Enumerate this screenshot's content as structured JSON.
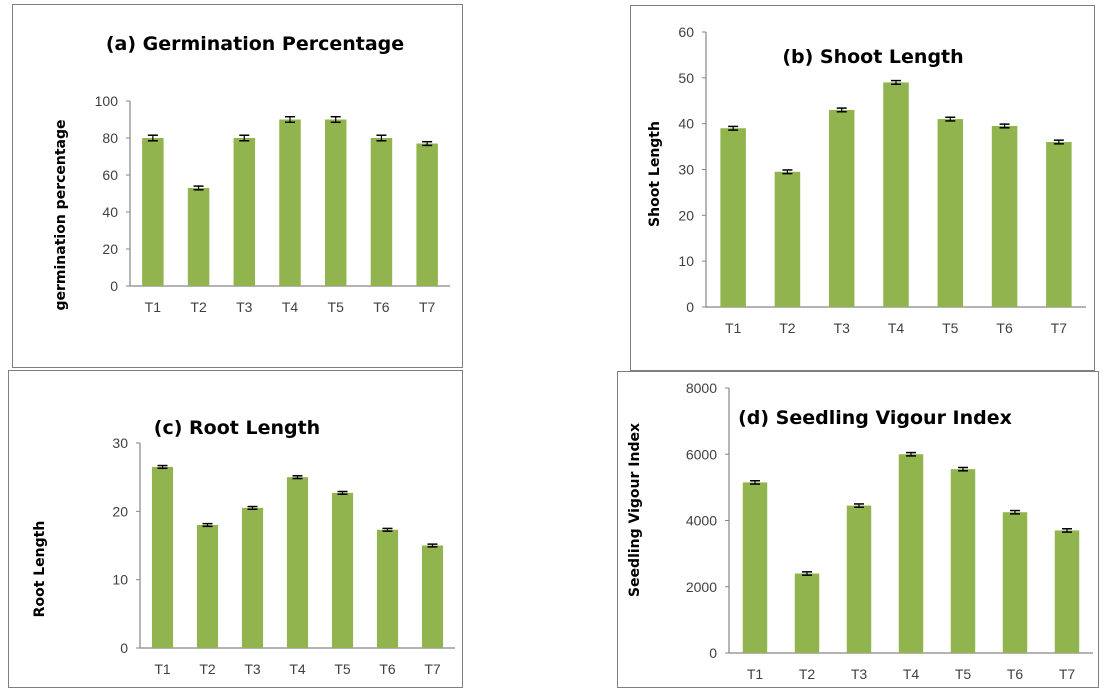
{
  "style": {
    "bar_color": "#92b44e",
    "axis_color": "#868686"
  },
  "chart_data": [
    {
      "type": "bar",
      "title": "(a) Germination Percentage",
      "xlabel": "",
      "ylabel": "germination percentage",
      "categories": [
        "T1",
        "T2",
        "T3",
        "T4",
        "T5",
        "T6",
        "T7"
      ],
      "values": [
        80,
        53,
        80,
        90,
        90,
        80,
        77
      ],
      "errors": [
        1.5,
        1,
        1.5,
        1.5,
        1.5,
        1.5,
        1
      ],
      "ylim": [
        0,
        100
      ],
      "yticks": [
        "0",
        "20",
        "40",
        "60",
        "80",
        "100"
      ],
      "grid": false,
      "legend": "none"
    },
    {
      "type": "bar",
      "title": "(b) Shoot Length",
      "xlabel": "",
      "ylabel": "Shoot Length",
      "categories": [
        "T1",
        "T2",
        "T3",
        "T4",
        "T5",
        "T6",
        "T7"
      ],
      "values": [
        39,
        29.5,
        43,
        49,
        41,
        39.5,
        36
      ],
      "errors": [
        0.4,
        0.4,
        0.4,
        0.4,
        0.4,
        0.4,
        0.4
      ],
      "ylim": [
        0,
        60
      ],
      "yticks": [
        "0",
        "10",
        "20",
        "30",
        "40",
        "50",
        "60"
      ],
      "grid": false,
      "legend": "none"
    },
    {
      "type": "bar",
      "title": "(c) Root Length",
      "xlabel": "",
      "ylabel": "Root Length",
      "categories": [
        "T1",
        "T2",
        "T3",
        "T4",
        "T5",
        "T6",
        "T7"
      ],
      "values": [
        26.5,
        18,
        20.5,
        25,
        22.7,
        17.3,
        15
      ],
      "errors": [
        0.2,
        0.2,
        0.2,
        0.2,
        0.2,
        0.2,
        0.2
      ],
      "ylim": [
        0,
        30
      ],
      "yticks": [
        "0",
        "10",
        "20",
        "30"
      ],
      "grid": false,
      "legend": "none"
    },
    {
      "type": "bar",
      "title": "(d) Seedling Vigour Index",
      "xlabel": "",
      "ylabel": "Seedling Vigour Index",
      "categories": [
        "T1",
        "T2",
        "T3",
        "T4",
        "T5",
        "T6",
        "T7"
      ],
      "values": [
        5150,
        2400,
        4450,
        6000,
        5550,
        4250,
        3700
      ],
      "errors": [
        50,
        50,
        50,
        50,
        50,
        50,
        50
      ],
      "ylim": [
        0,
        8000
      ],
      "yticks": [
        "0",
        "2000",
        "4000",
        "6000",
        "8000"
      ],
      "grid": false,
      "legend": "none"
    }
  ]
}
